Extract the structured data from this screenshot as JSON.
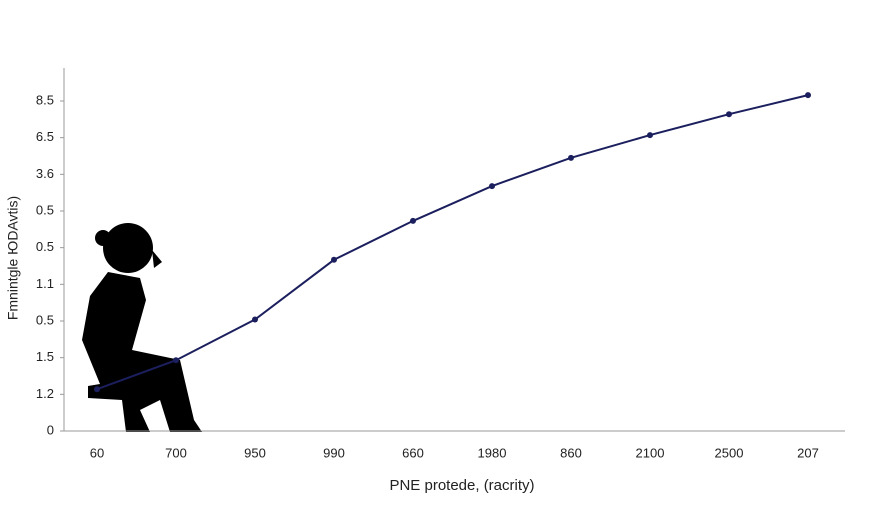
{
  "chart_data": {
    "type": "line",
    "x_label": "PNE protede, (racrity)",
    "y_label": "Fmnintgle ЮDAvtis)",
    "categories": [
      "60",
      "700",
      "950",
      "990",
      "660",
      "1980",
      "860",
      "2100",
      "2500",
      "207"
    ],
    "series": [
      {
        "name": "series",
        "color": "#1c1f5e",
        "values": [
          1.14,
          1.93,
          3.04,
          4.67,
          5.73,
          6.68,
          7.45,
          8.07,
          8.64,
          9.16
        ]
      }
    ],
    "ylim": [
      0,
      9.9
    ],
    "yticks": [
      {
        "value": 0,
        "label": "0"
      },
      {
        "value": 1,
        "label": "1.2"
      },
      {
        "value": 2,
        "label": "1.5"
      },
      {
        "value": 3,
        "label": "0.5"
      },
      {
        "value": 4,
        "label": "1.1"
      },
      {
        "value": 5,
        "label": "0.5"
      },
      {
        "value": 6,
        "label": "0.5"
      },
      {
        "value": 7,
        "label": "3.6"
      },
      {
        "value": 8,
        "label": "6.5"
      },
      {
        "value": 9,
        "label": "8.5"
      }
    ],
    "grid": false
  }
}
